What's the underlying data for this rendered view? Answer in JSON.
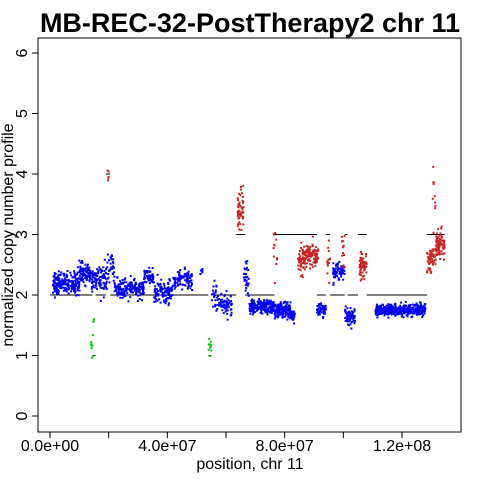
{
  "chart_data": {
    "type": "scatter",
    "title": "MB-REC-32-PostTherapy2 chr 11",
    "xlabel": "position, chr 11",
    "ylabel": "normalized copy number profile",
    "xlim": [
      0,
      135000000
    ],
    "ylim": [
      0,
      6
    ],
    "x_ticks": [
      {
        "value": 0,
        "label": "0.0e+00"
      },
      {
        "value": 40000000,
        "label": "4.0e+07"
      },
      {
        "value": 80000000,
        "label": "8.0e+07"
      },
      {
        "value": 120000000,
        "label": "1.2e+08"
      }
    ],
    "y_ticks": [
      {
        "value": 0,
        "label": "0"
      },
      {
        "value": 1,
        "label": "1"
      },
      {
        "value": 2,
        "label": "2"
      },
      {
        "value": 3,
        "label": "3"
      },
      {
        "value": 4,
        "label": "4"
      },
      {
        "value": 5,
        "label": "5"
      },
      {
        "value": 6,
        "label": "6"
      }
    ],
    "colors": {
      "normal": "#0000ff",
      "gain": "#cc2222",
      "loss": "#00cc00",
      "segment": "#000000"
    },
    "series": [
      {
        "id": "normal",
        "color": "#0000ff",
        "clusters": [
          {
            "x": [
              1000000,
              3000000
            ],
            "y": 2.2,
            "sd": 0.1,
            "n": 60
          },
          {
            "x": [
              3000000,
              10000000
            ],
            "y": 2.2,
            "sd": 0.09,
            "n": 140
          },
          {
            "x": [
              10000000,
              14000000
            ],
            "y": 2.35,
            "sd": 0.08,
            "n": 90
          },
          {
            "x": [
              14000000,
              19500000
            ],
            "y": 2.25,
            "sd": 0.12,
            "n": 90
          },
          {
            "x": [
              19500000,
              22000000
            ],
            "y": 2.45,
            "sd": 0.1,
            "n": 30
          },
          {
            "x": [
              22000000,
              27000000
            ],
            "y": 2.1,
            "sd": 0.08,
            "n": 90
          },
          {
            "x": [
              27000000,
              32000000
            ],
            "y": 2.1,
            "sd": 0.07,
            "n": 90
          },
          {
            "x": [
              32000000,
              35500000
            ],
            "y": 2.3,
            "sd": 0.06,
            "n": 60
          },
          {
            "x": [
              35500000,
              42000000
            ],
            "y": 2.05,
            "sd": 0.09,
            "n": 110
          },
          {
            "x": [
              42000000,
              48500000
            ],
            "y": 2.25,
            "sd": 0.08,
            "n": 90
          },
          {
            "x": [
              51000000,
              52000000
            ],
            "y": 2.4,
            "sd": 0.04,
            "n": 6
          },
          {
            "x": [
              55000000,
              57000000
            ],
            "y": 2.0,
            "sd": 0.15,
            "n": 20
          },
          {
            "x": [
              57000000,
              62000000
            ],
            "y": 1.85,
            "sd": 0.09,
            "n": 70
          },
          {
            "x": [
              66000000,
              68000000
            ],
            "y": 2.3,
            "sd": 0.12,
            "n": 30
          },
          {
            "x": [
              68000000,
              76500000
            ],
            "y": 1.8,
            "sd": 0.06,
            "n": 200
          },
          {
            "x": [
              76500000,
              82000000
            ],
            "y": 1.75,
            "sd": 0.06,
            "n": 140
          },
          {
            "x": [
              82000000,
              83500000
            ],
            "y": 1.65,
            "sd": 0.05,
            "n": 30
          },
          {
            "x": [
              91000000,
              94000000
            ],
            "y": 1.75,
            "sd": 0.05,
            "n": 50
          },
          {
            "x": [
              96500000,
              100500000
            ],
            "y": 2.4,
            "sd": 0.07,
            "n": 70
          },
          {
            "x": [
              100500000,
              104000000
            ],
            "y": 1.65,
            "sd": 0.07,
            "n": 70
          },
          {
            "x": [
              111000000,
              128000000
            ],
            "y": 1.75,
            "sd": 0.05,
            "n": 420
          }
        ]
      },
      {
        "id": "gain",
        "color": "#cc2222",
        "clusters": [
          {
            "x": [
              19500000,
              20000000
            ],
            "y": 3.95,
            "sd": 0.07,
            "n": 5
          },
          {
            "x": [
              64000000,
              66000000
            ],
            "y": 3.35,
            "sd": 0.18,
            "n": 50
          },
          {
            "x": [
              76000000,
              77500000
            ],
            "y": 2.8,
            "sd": 0.2,
            "n": 12
          },
          {
            "x": [
              84500000,
              87000000
            ],
            "y": 2.55,
            "sd": 0.12,
            "n": 60
          },
          {
            "x": [
              87000000,
              91500000
            ],
            "y": 2.65,
            "sd": 0.1,
            "n": 90
          },
          {
            "x": [
              94500000,
              95500000
            ],
            "y": 2.6,
            "sd": 0.12,
            "n": 15
          },
          {
            "x": [
              99500000,
              101000000
            ],
            "y": 2.7,
            "sd": 0.15,
            "n": 12
          },
          {
            "x": [
              105500000,
              108000000
            ],
            "y": 2.5,
            "sd": 0.1,
            "n": 60
          },
          {
            "x": [
              128500000,
              131500000
            ],
            "y": 2.6,
            "sd": 0.12,
            "n": 60
          },
          {
            "x": [
              131500000,
              134500000
            ],
            "y": 2.85,
            "sd": 0.1,
            "n": 80
          },
          {
            "x": [
              130500000,
              131500000
            ],
            "y": 3.7,
            "sd": 0.2,
            "n": 10
          }
        ]
      },
      {
        "id": "loss",
        "color": "#00cc00",
        "clusters": [
          {
            "x": [
              14000000,
              15000000
            ],
            "y": 1.15,
            "sd": 0.12,
            "n": 8
          },
          {
            "x": [
              14500000,
              15000000
            ],
            "y": 1.65,
            "sd": 0.05,
            "n": 3
          },
          {
            "x": [
              54000000,
              55000000
            ],
            "y": 1.15,
            "sd": 0.12,
            "n": 12
          }
        ]
      }
    ],
    "segments": [
      {
        "x": [
          0,
          14500000
        ],
        "y": 2.0
      },
      {
        "x": [
          14500000,
          15500000
        ],
        "y": 1.0
      },
      {
        "x": [
          15500000,
          19000000
        ],
        "y": 2.0
      },
      {
        "x": [
          19000000,
          20500000
        ],
        "y": 4.0
      },
      {
        "x": [
          20500000,
          54000000
        ],
        "y": 2.0
      },
      {
        "x": [
          54000000,
          55000000
        ],
        "y": 1.0
      },
      {
        "x": [
          55000000,
          63500000
        ],
        "y": 2.0
      },
      {
        "x": [
          63500000,
          66500000
        ],
        "y": 3.0
      },
      {
        "x": [
          66500000,
          76500000
        ],
        "y": 2.0
      },
      {
        "x": [
          76500000,
          84000000
        ],
        "y": 3.0
      },
      {
        "x": [
          84000000,
          91000000
        ],
        "y": 3.0
      },
      {
        "x": [
          91000000,
          94000000
        ],
        "y": 2.0
      },
      {
        "x": [
          94000000,
          95500000
        ],
        "y": 3.0
      },
      {
        "x": [
          95500000,
          100500000
        ],
        "y": 2.0
      },
      {
        "x": [
          100500000,
          101500000
        ],
        "y": 3.0
      },
      {
        "x": [
          101500000,
          105000000
        ],
        "y": 2.0
      },
      {
        "x": [
          105000000,
          108000000
        ],
        "y": 3.0
      },
      {
        "x": [
          108000000,
          128500000
        ],
        "y": 2.0
      },
      {
        "x": [
          128500000,
          134500000
        ],
        "y": 3.0
      }
    ]
  }
}
